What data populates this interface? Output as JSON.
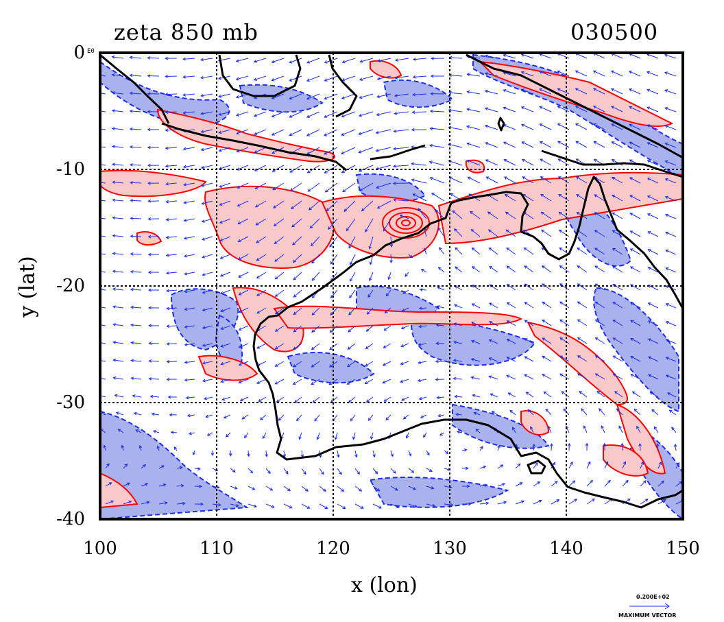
{
  "title_left": "zeta 850 mb",
  "title_right": "030500",
  "origin_label": "E0",
  "x_axis": {
    "label": "x (lon)",
    "ticks": [
      "100",
      "110",
      "120",
      "130",
      "140",
      "150"
    ]
  },
  "y_axis": {
    "label": "y (lat)",
    "ticks": [
      "0",
      "-10",
      "-20",
      "-30",
      "-40"
    ]
  },
  "vector_legend": {
    "value": "0.200E+02",
    "caption": "MAXIMUM VECTOR"
  },
  "chart_data": {
    "type": "heatmap",
    "title": "zeta 850 mb",
    "xlabel": "x (lon)",
    "ylabel": "y (lat)",
    "xlim": [
      100,
      150
    ],
    "ylim": [
      -40,
      0
    ],
    "grid": true,
    "colors": {
      "positive_zeta": "#ff0000",
      "positive_fill": "#f9c9c9",
      "negative_zeta": "#0000ff",
      "negative_fill": "#aab2ee",
      "wind_vectors": "#0000ff",
      "coastline": "#000000"
    }
  }
}
